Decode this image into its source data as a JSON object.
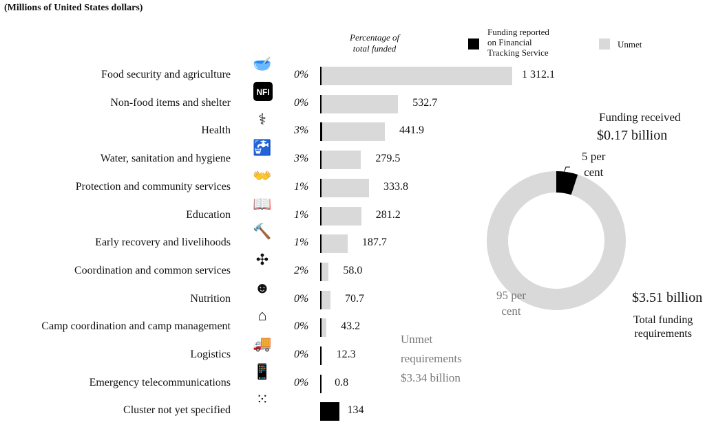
{
  "units_note": "(Millions of United States dollars)",
  "pct_header": [
    "Percentage of",
    "total funded"
  ],
  "legend": {
    "funded": [
      "Funding reported",
      "on Financial",
      "Tracking Service"
    ],
    "unmet": "Unmet",
    "funded_color": "#000000",
    "unmet_color": "#d9d9d9"
  },
  "chart_data": [
    {
      "type": "bar",
      "orientation": "horizontal",
      "title": "",
      "xlabel": "",
      "ylabel": "",
      "categories": [
        "Food security and agriculture",
        "Non-food items and shelter",
        "Health",
        "Water, sanitation and hygiene",
        "Protection and community services",
        "Education",
        "Early recovery and livelihoods",
        "Coordination and common services",
        "Nutrition",
        "Camp coordination and camp management",
        "Logistics",
        "Emergency telecommunications",
        "Cluster not yet specified"
      ],
      "values": [
        1312.1,
        532.7,
        441.9,
        279.5,
        333.8,
        281.2,
        187.7,
        58.0,
        70.7,
        43.2,
        12.3,
        0.8,
        134
      ],
      "value_labels": [
        "1 312.1",
        "532.7",
        "441.9",
        "279.5",
        "333.8",
        "281.2",
        "187.7",
        "58.0",
        "70.7",
        "43.2",
        "12.3",
        "0.8",
        "134"
      ],
      "percent_funded": [
        0,
        0,
        3,
        3,
        1,
        1,
        1,
        2,
        0,
        0,
        0,
        0,
        null
      ],
      "percent_labels": [
        "0%",
        "0%",
        "3%",
        "3%",
        "1%",
        "1%",
        "1%",
        "2%",
        "0%",
        "0%",
        "0%",
        "0%",
        ""
      ],
      "icons": [
        "food-bowl-icon",
        "nfi-icon",
        "caduceus-icon",
        "water-tap-icon",
        "protection-hands-icon",
        "book-icon",
        "hammer-icon",
        "coordination-arrows-icon",
        "nutrition-child-icon",
        "camp-shelter-icon",
        "logistics-truck-icon",
        "telecom-phone-icon",
        "cluster-dots-icon"
      ]
    },
    {
      "type": "pie",
      "variant": "donut",
      "slices": [
        {
          "name": "Funding received",
          "value": 5
        },
        {
          "name": "Unmet",
          "value": 95
        }
      ],
      "slice_labels": [
        "5 per cent",
        "95 per cent"
      ]
    }
  ],
  "funding_received": {
    "label": "Funding received",
    "amount": "$0.17 billion",
    "pct": [
      "5 per",
      "cent"
    ]
  },
  "unmet": {
    "pct": [
      "95 per",
      "cent"
    ],
    "label": [
      "Unmet",
      "requirements"
    ],
    "amount": "$3.34 billion"
  },
  "total": {
    "amount": "$3.51 billion",
    "label": [
      "Total funding",
      "requirements"
    ]
  }
}
